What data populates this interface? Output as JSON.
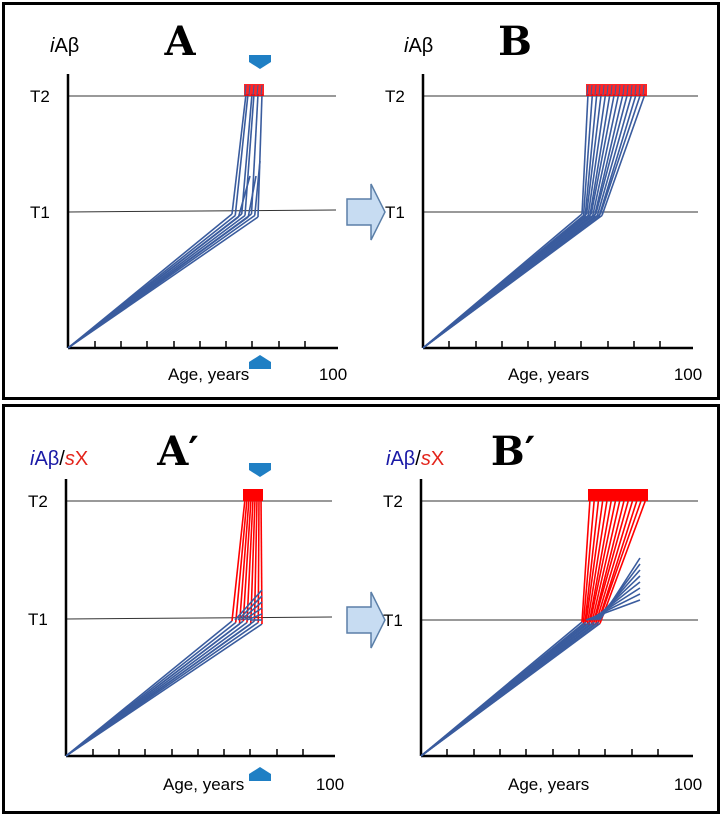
{
  "panels": [
    {
      "id": "A",
      "letter": "A",
      "y_label_parts": [
        {
          "text": "i",
          "italic": true,
          "color": "#000000"
        },
        {
          "text": "Aβ",
          "italic": false,
          "color": "#000000"
        }
      ],
      "t2_label": "T2",
      "t1_label": "T1",
      "x_label": "Age, years",
      "x_end_label": "100",
      "has_markers": true,
      "red_block_style": "outline"
    },
    {
      "id": "B",
      "letter": "B",
      "y_label_parts": [
        {
          "text": "i",
          "italic": true,
          "color": "#000000"
        },
        {
          "text": "Aβ",
          "italic": false,
          "color": "#000000"
        }
      ],
      "t2_label": "T2",
      "t1_label": "T1",
      "x_label": "Age, years",
      "x_end_label": "100",
      "has_markers": false,
      "red_block_style": "outline"
    },
    {
      "id": "A-prime",
      "letter": "A′",
      "y_label_parts": [
        {
          "text": "i",
          "italic": true,
          "color": "#1a1aa6"
        },
        {
          "text": "Aβ",
          "italic": false,
          "color": "#1a1aa6"
        },
        {
          "text": "/",
          "italic": false,
          "color": "#000000"
        },
        {
          "text": "s",
          "italic": true,
          "color": "#e3241b"
        },
        {
          "text": "X",
          "italic": false,
          "color": "#e3241b"
        }
      ],
      "t2_label": "T2",
      "t1_label": "T1",
      "x_label": "Age, years",
      "x_end_label": "100",
      "has_markers": true,
      "red_block_style": "solid"
    },
    {
      "id": "B-prime",
      "letter": "B′",
      "y_label_parts": [
        {
          "text": "i",
          "italic": true,
          "color": "#1a1aa6"
        },
        {
          "text": "Aβ",
          "italic": false,
          "color": "#1a1aa6"
        },
        {
          "text": "/",
          "italic": false,
          "color": "#000000"
        },
        {
          "text": "s",
          "italic": true,
          "color": "#e3241b"
        },
        {
          "text": "X",
          "italic": false,
          "color": "#e3241b"
        }
      ],
      "t2_label": "T2",
      "t1_label": "T1",
      "x_label": "Age, years",
      "x_end_label": "100",
      "has_markers": false,
      "red_block_style": "solid"
    }
  ],
  "colors": {
    "trajectory_blue": "#3a5c9e",
    "trajectory_red": "#ff0000",
    "marker_blue": "#1f7fc4",
    "arrow_fill": "#c7dcf2",
    "arrow_stroke": "#5b7fa8"
  }
}
